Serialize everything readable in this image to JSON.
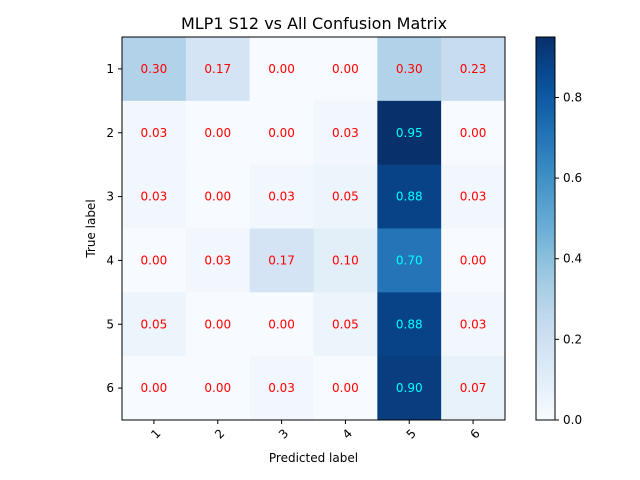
{
  "chart_data": {
    "type": "heatmap",
    "title": "MLP1 S12 vs All Confusion Matrix",
    "xlabel": "Predicted label",
    "ylabel": "True label",
    "x_categories": [
      "1",
      "2",
      "3",
      "4",
      "5",
      "6"
    ],
    "y_categories": [
      "1",
      "2",
      "3",
      "4",
      "5",
      "6"
    ],
    "values": [
      [
        0.3,
        0.17,
        0.0,
        0.0,
        0.3,
        0.23
      ],
      [
        0.03,
        0.0,
        0.0,
        0.03,
        0.95,
        0.0
      ],
      [
        0.03,
        0.0,
        0.03,
        0.05,
        0.88,
        0.03
      ],
      [
        0.0,
        0.03,
        0.17,
        0.1,
        0.7,
        0.0
      ],
      [
        0.05,
        0.0,
        0.0,
        0.05,
        0.88,
        0.03
      ],
      [
        0.0,
        0.0,
        0.03,
        0.0,
        0.9,
        0.07
      ]
    ],
    "value_format": "0.00",
    "colormap": "Blues",
    "colorbar": {
      "range": [
        0.0,
        0.95
      ],
      "ticks": [
        0.0,
        0.2,
        0.4,
        0.6,
        0.8
      ],
      "tick_labels": [
        "0.0",
        "0.2",
        "0.4",
        "0.6",
        "0.8"
      ]
    },
    "x_tick_rotation": "45",
    "cell_text_colors": {
      "light_cell": "#ff0000",
      "dark_cell": "#00ffff"
    },
    "grid": false
  }
}
